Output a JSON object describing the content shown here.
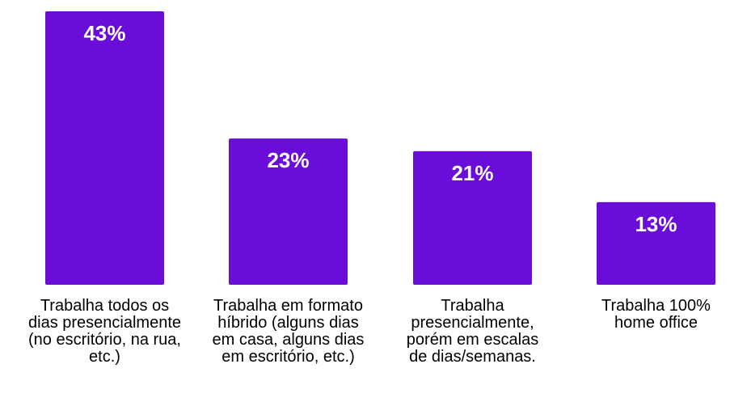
{
  "chart_data": {
    "type": "bar",
    "categories": [
      "Trabalha todos os dias presencialmente (no escritório, na rua, etc.)",
      "Trabalha em formato híbrido (alguns dias em casa, alguns dias em escritório, etc.)",
      "Trabalha presencialmente, porém em escalas de dias/semanas.",
      "Trabalha 100% home office"
    ],
    "values": [
      43,
      23,
      21,
      13
    ],
    "value_labels": [
      "43%",
      "23%",
      "21%",
      "13%"
    ],
    "title": "",
    "xlabel": "",
    "ylabel": "",
    "ylim": [
      0,
      43
    ],
    "grid": false,
    "legend": "none"
  },
  "colors": {
    "bar": "#6a0dd8",
    "value_text": "#ffffff",
    "label_text": "#000000"
  }
}
